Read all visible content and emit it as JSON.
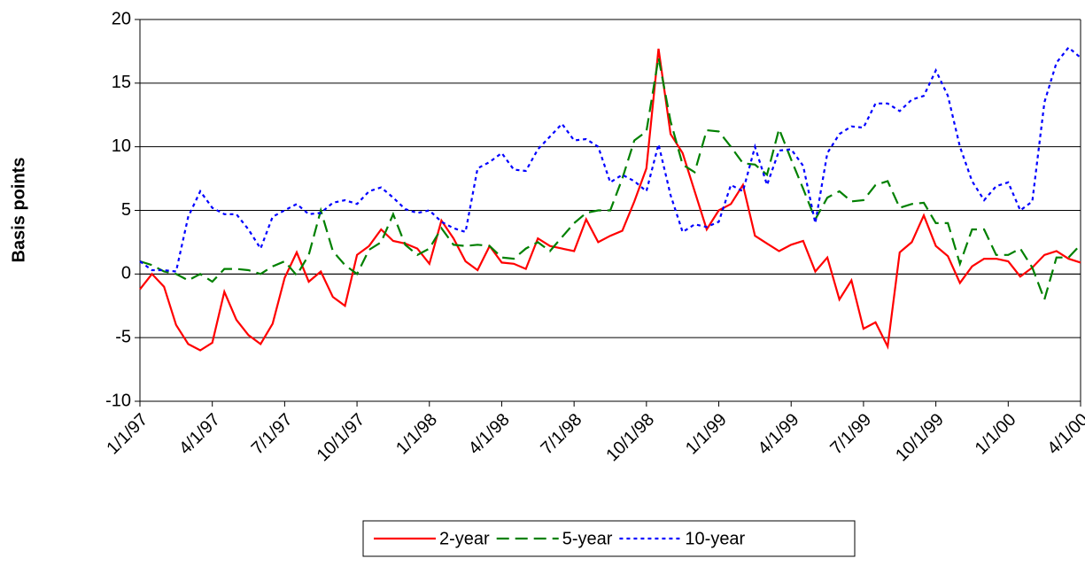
{
  "chart_data": {
    "type": "line",
    "y_label": "Basis points",
    "categories": [
      "1/1/97",
      null,
      null,
      null,
      null,
      null,
      "4/1/97",
      null,
      null,
      null,
      null,
      null,
      "7/1/97",
      null,
      null,
      null,
      null,
      null,
      "10/1/97",
      null,
      null,
      null,
      null,
      null,
      "1/1/98",
      null,
      null,
      null,
      null,
      null,
      "4/1/98",
      null,
      null,
      null,
      null,
      null,
      "7/1/98",
      null,
      null,
      null,
      null,
      null,
      "10/1/98",
      null,
      null,
      null,
      null,
      null,
      "1/1/99",
      null,
      null,
      null,
      null,
      null,
      "4/1/99",
      null,
      null,
      null,
      null,
      null,
      "7/1/99",
      null,
      null,
      null,
      null,
      null,
      "10/1/99",
      null,
      null,
      null,
      null,
      null,
      "1/1/00",
      null,
      null,
      null,
      null,
      null,
      "4/1/00"
    ],
    "series": [
      {
        "name": "2-year",
        "color": "#ff0000",
        "dash": "none",
        "values": [
          -1.2,
          0,
          -1,
          -4,
          -5.5,
          -6,
          -5.4,
          -1.4,
          -3.6,
          -4.8,
          -5.5,
          -3.9,
          -0.3,
          1.7,
          -0.6,
          0.2,
          -1.8,
          -2.5,
          1.5,
          2.2,
          3.5,
          2.6,
          2.4,
          2,
          0.8,
          4.2,
          2.8,
          1,
          0.3,
          2.2,
          0.9,
          0.8,
          0.4,
          2.8,
          2.2,
          2,
          1.8,
          4.3,
          2.5,
          3,
          3.4,
          5.7,
          8.3,
          17.7,
          11,
          9.5,
          6.5,
          3.5,
          5,
          5.5,
          7,
          3,
          2.4,
          1.8,
          2.3,
          2.6,
          0.2,
          1.3,
          -2,
          -0.5,
          -4.3,
          -3.8,
          -5.7,
          1.7,
          2.5,
          4.6,
          2.2,
          1.4,
          -0.7,
          0.6,
          1.2,
          1.2,
          1,
          -0.2,
          0.5,
          1.5,
          1.8,
          1.2,
          0.9
        ]
      },
      {
        "name": "5-year",
        "color": "#008000",
        "dash": "14,7",
        "values": [
          1,
          0.7,
          0.2,
          0,
          -0.5,
          0,
          -0.6,
          0.4,
          0.4,
          0.3,
          0,
          0.6,
          1,
          -0.1,
          1.5,
          5,
          1.8,
          0.7,
          0,
          1.9,
          2.5,
          4.7,
          2.3,
          1.5,
          2,
          3.6,
          2.3,
          2.2,
          2.3,
          2.2,
          1.3,
          1.2,
          2,
          2.5,
          1.8,
          2.9,
          4,
          4.8,
          5,
          5,
          7.5,
          10.5,
          11.2,
          17,
          12,
          8.6,
          8,
          11.3,
          11.2,
          10,
          8.7,
          8.6,
          7.8,
          11.4,
          9,
          6.7,
          4.3,
          6,
          6.5,
          5.7,
          5.8,
          7,
          7.3,
          5.2,
          5.5,
          5.6,
          4,
          4,
          0.8,
          3.5,
          3.5,
          1.5,
          1.5,
          2,
          0.5,
          -2,
          1.3,
          1.3,
          2.3
        ]
      },
      {
        "name": "10-year",
        "color": "#0000ff",
        "dash": "4,4",
        "values": [
          1,
          0.3,
          0.3,
          0.2,
          4.5,
          6.5,
          5.2,
          4.7,
          4.7,
          3.5,
          2,
          4.5,
          5,
          5.5,
          4.7,
          4.8,
          5.6,
          5.8,
          5.5,
          6.5,
          6.8,
          6,
          5.1,
          4.8,
          5,
          4.1,
          3.6,
          3.3,
          8.3,
          8.8,
          9.5,
          8.2,
          8.1,
          9.8,
          10.8,
          11.8,
          10.5,
          10.6,
          10,
          7.2,
          7.8,
          7.3,
          6.5,
          10.2,
          6.2,
          3.3,
          3.9,
          3.7,
          4.1,
          7,
          6.5,
          10,
          7,
          9.7,
          9.8,
          8.5,
          4,
          9.5,
          11,
          11.6,
          11.5,
          13.4,
          13.4,
          12.8,
          13.7,
          14,
          16,
          14,
          10,
          7.3,
          5.8,
          6.9,
          7.2,
          5,
          5.7,
          13.5,
          16.6,
          17.8,
          17
        ]
      }
    ],
    "ylim": [
      -10,
      20
    ],
    "yticks": [
      -10,
      -5,
      0,
      5,
      10,
      15,
      20
    ],
    "grid": true,
    "legend": "bottom"
  }
}
